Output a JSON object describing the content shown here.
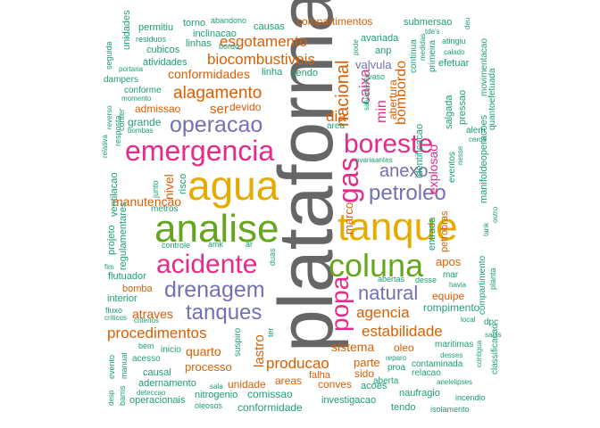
{
  "palette": {
    "gray": "#666666",
    "gold": "#E6AB02",
    "magenta": "#E7298A",
    "green": "#66A61E",
    "purple": "#7570B3",
    "orange": "#D95F02",
    "teal": "#1B9E77"
  },
  "words": [
    "plataforma",
    "tanque",
    "agua",
    "analise",
    "emergencia",
    "boreste",
    "coluna",
    "acidente",
    "gas",
    "operacao",
    "drenagem",
    "popa",
    "petroleo",
    "tanques",
    "natural",
    "nacional",
    "anexo",
    "esgotamento",
    "biocombustiveis",
    "alagamento",
    "procedimentos",
    "estabilidade",
    "producao",
    "agencia",
    "caixa",
    "conformidades",
    "bombordo",
    "manutencao",
    "nivel",
    "dia",
    "atraves",
    "sistema",
    "lastro",
    "min",
    "ser",
    "explosao",
    "marco",
    "quarto",
    "valvula",
    "parte",
    "devido",
    "admissao",
    "grande",
    "apos",
    "processo",
    "oleo",
    "sido",
    "equipe",
    "rompimento",
    "aberta",
    "conves",
    "falha",
    "areas",
    "unidade",
    "comissao",
    "conformidade",
    "investigacao",
    "acoes",
    "naufragio",
    "tendo",
    "abertura",
    "identificacao",
    "petrobras",
    "manifoldeoperacoes",
    "entrada",
    "compartimentos",
    "causas",
    "inclinacao",
    "linhas",
    "atividades",
    "unidades",
    "permitiu",
    "torno",
    "abandono",
    "residuos",
    "cubicos",
    "bordo",
    "submersao",
    "pressao",
    "salgada",
    "movimentacao",
    "quantoefetuada",
    "primeira",
    "continua",
    "efetuar",
    "regulamentares",
    "ventilacao",
    "flutuador",
    "bomba",
    "interior",
    "fluxo",
    "projeto",
    "controle",
    "amk",
    "duas",
    "metros",
    "risco",
    "junto",
    "ar",
    "sendo",
    "linha",
    "avariada",
    "anp",
    "vaso",
    "area",
    "salvamento",
    "avaria",
    "antes",
    "pode",
    "ter",
    "suspiro",
    "cerca",
    "causal",
    "adernamento",
    "nitrogenio",
    "oleosos",
    "operacionais",
    "incendio",
    "isolamento",
    "contaminada",
    "relacao",
    "reparo",
    "proa",
    "maritimas",
    "desses",
    "salas",
    "local",
    "dpc",
    "classificacao",
    "compartimento",
    "planta",
    "mar",
    "desse",
    "abertas",
    "havia",
    "tank",
    "outro",
    "alem",
    "eventos",
    "nesse",
    "conforme",
    "momento",
    "dampers",
    "portaria",
    "seguida",
    "bombas",
    "conter",
    "reverso",
    "relativa",
    "resposta",
    "fim",
    "evento",
    "criticos",
    "criterios",
    "bem",
    "inicio",
    "acesso",
    "manual",
    "barris",
    "deteccao",
    "sala",
    "anelelipses",
    "contigua",
    "deu",
    "atingiu",
    "calado",
    "tde's",
    "medidas",
    "desp"
  ]
}
